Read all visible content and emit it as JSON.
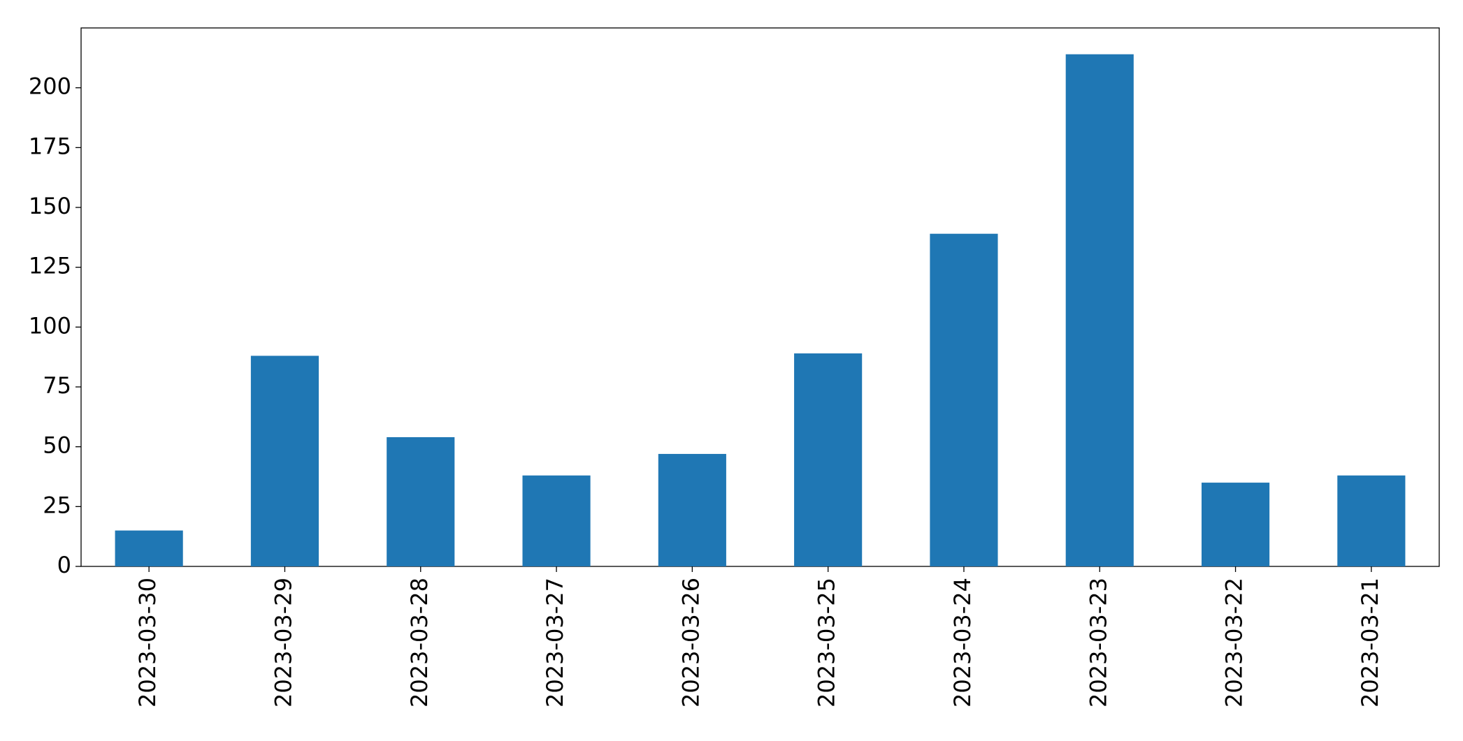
{
  "chart_data": {
    "type": "bar",
    "categories": [
      "2023-03-30",
      "2023-03-29",
      "2023-03-28",
      "2023-03-27",
      "2023-03-26",
      "2023-03-25",
      "2023-03-24",
      "2023-03-23",
      "2023-03-22",
      "2023-03-21"
    ],
    "values": [
      15,
      88,
      54,
      38,
      47,
      89,
      139,
      214,
      35,
      38
    ],
    "color": "#1f77b4",
    "ylim": [
      0,
      225
    ],
    "yticks": [
      0,
      25,
      50,
      75,
      100,
      125,
      150,
      175,
      200
    ],
    "grid": false
  }
}
